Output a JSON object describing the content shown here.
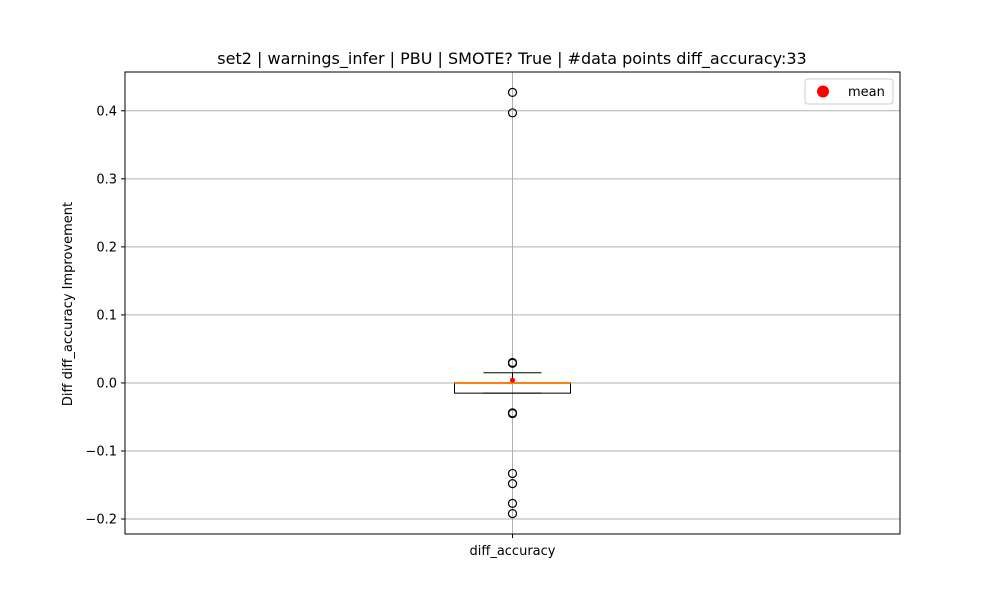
{
  "chart_data": {
    "type": "box",
    "title": "set2 | warnings_infer | PBU | SMOTE? True | #data points diff_accuracy:33",
    "xlabel": "",
    "ylabel": "Diff diff_accuracy Improvement",
    "categories": [
      "diff_accuracy"
    ],
    "ylim": [
      -0.222,
      0.457
    ],
    "yticks": [
      -0.2,
      -0.1,
      0.0,
      0.1,
      0.2,
      0.3,
      0.4
    ],
    "ytick_labels": [
      "−0.2",
      "−0.1",
      "0.0",
      "0.1",
      "0.2",
      "0.3",
      "0.4"
    ],
    "grid": true,
    "legend": {
      "placement": "top-right",
      "entries": [
        {
          "label": "mean",
          "color": "#ff0000"
        }
      ]
    },
    "n_points": 33,
    "series": [
      {
        "category": "diff_accuracy",
        "whisker_low": -0.015,
        "q1": -0.015,
        "median": 0.0,
        "q3": 0.0,
        "whisker_high": 0.015,
        "mean": 0.004,
        "outliers": [
          0.427,
          0.397,
          0.03,
          0.029,
          -0.044,
          -0.045,
          -0.133,
          -0.148,
          -0.177,
          -0.192
        ]
      }
    ],
    "colors": {
      "median": "#ff7f0e",
      "mean": "#ff0000",
      "box": "#000000",
      "grid": "#b0b0b0"
    }
  }
}
